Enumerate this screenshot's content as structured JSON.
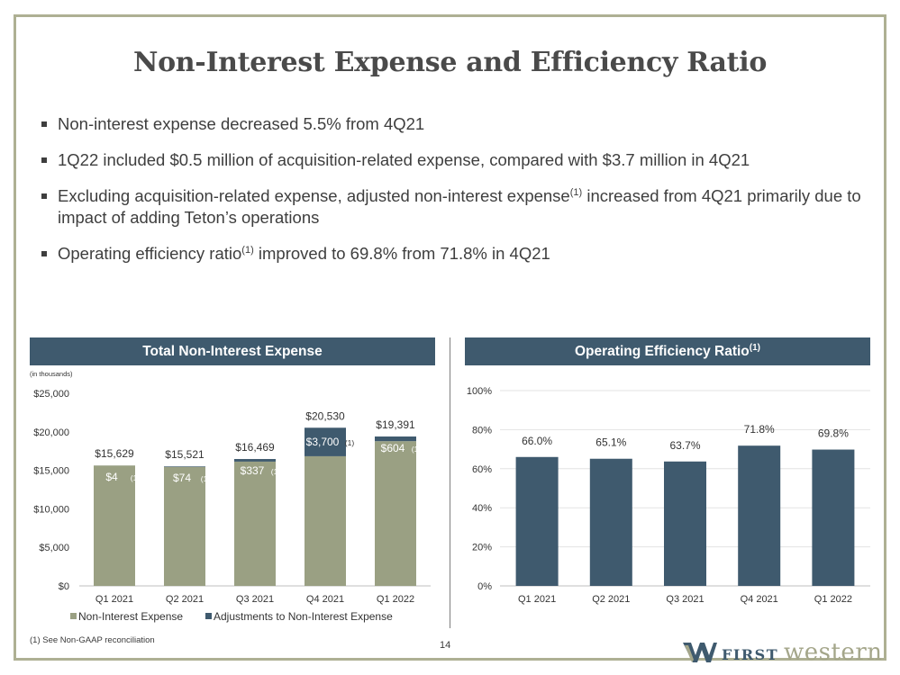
{
  "title": "Non-Interest Expense and Efficiency Ratio",
  "bullets": [
    {
      "text": "Non-interest expense decreased 5.5% from 4Q21"
    },
    {
      "text": "1Q22 included $0.5 million of acquisition-related expense, compared with $3.7 million in 4Q21"
    },
    {
      "text_a": "Excluding acquisition-related expense, adjusted non-interest expense",
      "sup": "(1)",
      "text_b": " increased from 4Q21 primarily due to impact of adding Teton’s operations"
    },
    {
      "text_a": "Operating efficiency ratio",
      "sup": "(1)",
      "text_b": "  improved to 69.8% from 71.8% in 4Q21"
    }
  ],
  "colors": {
    "olive": "#9aa083",
    "navy": "#3f5a6e",
    "frame": "#aeb093"
  },
  "chart_data": [
    {
      "type": "bar",
      "title": "Total Non-Interest Expense",
      "unit_note": "(in thousands)",
      "stacked": true,
      "categories": [
        "Q1 2021",
        "Q2 2021",
        "Q3 2021",
        "Q4 2021",
        "Q1 2022"
      ],
      "ylim": [
        0,
        25000
      ],
      "yticks": [
        "$0",
        "$5,000",
        "$10,000",
        "$15,000",
        "$20,000",
        "$25,000"
      ],
      "ytick_values": [
        0,
        5000,
        10000,
        15000,
        20000,
        25000
      ],
      "series": [
        {
          "name": "Non-Interest Expense",
          "color": "#9aa083",
          "values": [
            15625,
            15447,
            16132,
            16830,
            18787
          ]
        },
        {
          "name": "Adjustments to Non-Interest Expense",
          "color": "#3f5a6e",
          "values": [
            4,
            74,
            337,
            3700,
            604
          ]
        }
      ],
      "total_labels": [
        "$15,629",
        "$15,521",
        "$16,469",
        "$20,530",
        "$19,391"
      ],
      "adj_labels": [
        "$4",
        "$74",
        "$337",
        "$3,700",
        "$604"
      ],
      "adj_note": "(1)",
      "grid": false,
      "legend": "bottom"
    },
    {
      "type": "bar",
      "title": "Operating Efficiency Ratio",
      "title_sup": "(1)",
      "categories": [
        "Q1 2021",
        "Q2 2021",
        "Q3 2021",
        "Q4 2021",
        "Q1 2022"
      ],
      "values": [
        66.0,
        65.1,
        63.7,
        71.8,
        69.8
      ],
      "value_labels": [
        "66.0%",
        "65.1%",
        "63.7%",
        "71.8%",
        "69.8%"
      ],
      "ylim": [
        0,
        100
      ],
      "yticks": [
        "0%",
        "20%",
        "40%",
        "60%",
        "80%",
        "100%"
      ],
      "ytick_values": [
        0,
        20,
        40,
        60,
        80,
        100
      ],
      "color": "#3f5a6e",
      "grid": true
    }
  ],
  "footnote": "(1)  See Non-GAAP reconciliation",
  "page_number": "14",
  "logo": {
    "first": "FIRST",
    "western": "western"
  }
}
